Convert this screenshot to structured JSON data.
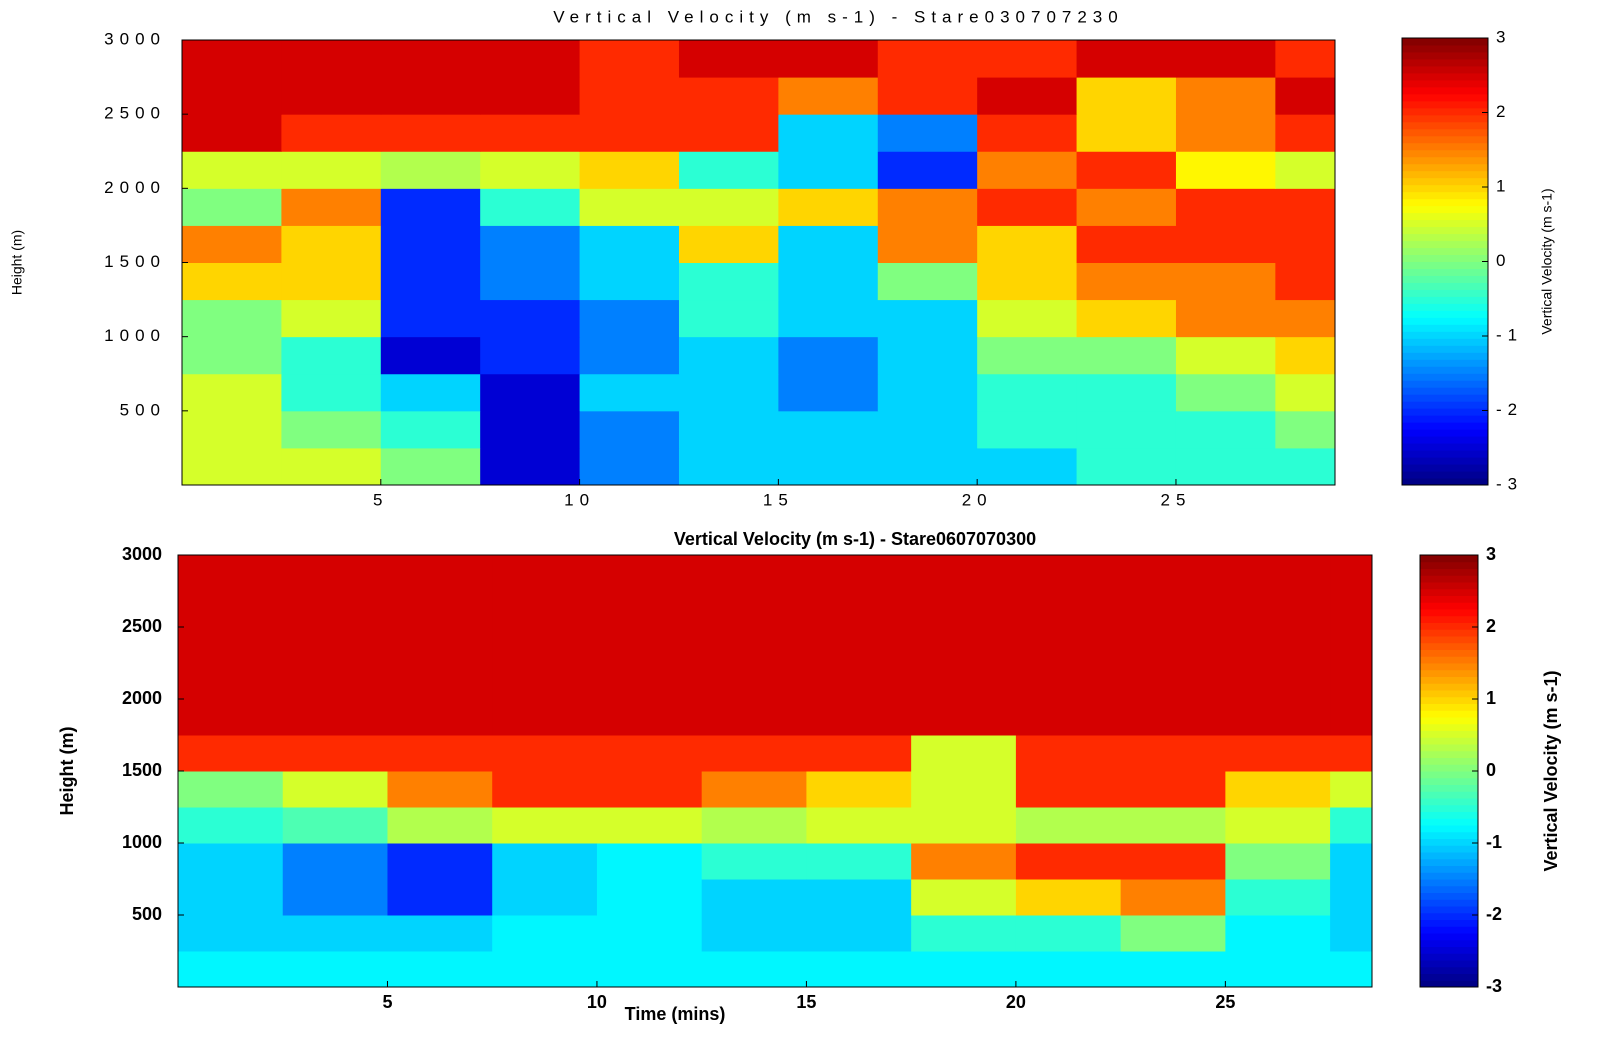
{
  "chart_data": [
    {
      "type": "heatmap",
      "title": "Vertical Velocity (m s-1) - Stare030707230",
      "ylabel": "Height (m)",
      "colorbar_label": "Vertical Velocity (m s-1)",
      "xlim": [
        0,
        29
      ],
      "xticks": [
        5,
        10,
        15,
        20,
        25
      ],
      "ylim": [
        0,
        3000
      ],
      "yticks": [
        500,
        1000,
        1500,
        2000,
        2500,
        3000
      ],
      "clim": [
        -3,
        3
      ],
      "cticks": [
        -3,
        -2,
        -1,
        0,
        1,
        2,
        3
      ],
      "colormap": "jet",
      "x": [
        1.25,
        3.75,
        6.25,
        8.75,
        11.25,
        13.75,
        16.25,
        18.75,
        21.25,
        23.75,
        26.25,
        28.75
      ],
      "y": [
        125,
        375,
        625,
        875,
        1125,
        1375,
        1625,
        1875,
        2125,
        2375,
        2625,
        2875
      ],
      "z": [
        [
          0.5,
          0.5,
          0,
          -2.5,
          -1.5,
          -1,
          -1,
          -1,
          -1,
          -0.5,
          -0.5,
          -0.5
        ],
        [
          0.5,
          0,
          -0.5,
          -2.5,
          -1.5,
          -1,
          -1,
          -1,
          -0.5,
          -0.5,
          -0.5,
          0
        ],
        [
          0.5,
          -0.5,
          -1,
          -2.5,
          -1,
          -1,
          -1.5,
          -1,
          -0.5,
          -0.5,
          0,
          0.5
        ],
        [
          0,
          -0.5,
          -2.5,
          -2,
          -1.5,
          -1,
          -1.5,
          -1,
          0,
          0,
          0.5,
          1
        ],
        [
          0,
          0.5,
          -2,
          -2,
          -1.5,
          -0.5,
          -1,
          -1,
          0.5,
          1,
          1.5,
          1.5
        ],
        [
          1,
          1,
          -2,
          -1.5,
          -1,
          -0.5,
          -1,
          0,
          1,
          1.5,
          1.5,
          2
        ],
        [
          1.5,
          1,
          -2,
          -1.5,
          -1,
          1,
          -1,
          1.5,
          1,
          2,
          2,
          2
        ],
        [
          0,
          1.5,
          -2,
          -0.5,
          0.5,
          0.5,
          1,
          1.5,
          2,
          1.5,
          2,
          2
        ],
        [
          0.5,
          0.5,
          0.3,
          0.5,
          1,
          -0.5,
          -1,
          -2,
          1.5,
          2,
          0.8,
          0.5
        ],
        [
          2.5,
          2,
          2,
          2,
          2,
          2,
          -1,
          -1.5,
          2,
          1,
          1.5,
          2
        ],
        [
          2.5,
          2.5,
          2.5,
          2.5,
          2,
          2,
          1.5,
          2,
          2.5,
          1,
          1.5,
          2.5
        ],
        [
          2.5,
          2.5,
          2.5,
          2.5,
          2,
          2.5,
          2.5,
          2,
          2,
          2.5,
          2.5,
          2
        ]
      ]
    },
    {
      "type": "heatmap",
      "title": "Vertical Velocity (m s-1) - Stare0607070300",
      "xlabel": "Time (mins)",
      "ylabel": "Height (m)",
      "colorbar_label": "Vertical Velocity (m s-1)",
      "xlim": [
        0,
        28.5
      ],
      "xticks": [
        5,
        10,
        15,
        20,
        25
      ],
      "ylim": [
        0,
        3000
      ],
      "yticks": [
        500,
        1000,
        1500,
        2000,
        2500,
        3000
      ],
      "clim": [
        -3,
        3
      ],
      "cticks": [
        -3,
        -2,
        -1,
        0,
        1,
        2,
        3
      ],
      "colormap": "jet",
      "x": [
        1.25,
        3.75,
        6.25,
        8.75,
        11.25,
        13.75,
        16.25,
        18.75,
        21.25,
        23.75,
        26.25,
        28.75
      ],
      "y": [
        125,
        375,
        625,
        875,
        1125,
        1375,
        1625,
        1875,
        2125,
        2375,
        2625,
        2875
      ],
      "z": [
        [
          -0.8,
          -0.8,
          -0.8,
          -0.8,
          -0.8,
          -0.8,
          -0.8,
          -0.8,
          -0.8,
          -0.8,
          -0.8,
          -0.8
        ],
        [
          -1,
          -1,
          -1,
          -0.8,
          -0.8,
          -1,
          -1,
          -0.5,
          -0.5,
          0,
          -0.8,
          -1
        ],
        [
          -1,
          -1.5,
          -2,
          -1,
          -0.8,
          -1,
          -1,
          0.5,
          1,
          1.5,
          -0.5,
          -1
        ],
        [
          -1,
          -1.5,
          -2,
          -1,
          -0.8,
          -0.5,
          -0.5,
          1.5,
          2,
          2,
          0,
          -1
        ],
        [
          -0.5,
          -0.3,
          0.3,
          0.5,
          0.5,
          0.3,
          0.5,
          0.5,
          0.3,
          0.3,
          0.5,
          -0.5
        ],
        [
          0,
          0.5,
          1.5,
          2,
          2,
          1.5,
          1,
          0.5,
          2,
          2,
          1,
          0.5
        ],
        [
          2,
          2,
          2,
          2,
          2,
          2,
          2,
          0.5,
          2,
          2,
          2,
          2
        ],
        [
          2.5,
          2.5,
          2.5,
          2.5,
          2.5,
          2.5,
          2.5,
          2.5,
          2.5,
          2.5,
          2.5,
          2.5
        ],
        [
          2.5,
          2.5,
          2.5,
          2.5,
          2.5,
          2.5,
          2.5,
          2.5,
          2.5,
          2.5,
          2.5,
          2.5
        ],
        [
          2.5,
          2.5,
          2.5,
          2.5,
          2.5,
          2.5,
          2.5,
          2.5,
          2.5,
          2.5,
          2.5,
          2.5
        ],
        [
          2.5,
          2.5,
          2.5,
          2.5,
          2.5,
          2.5,
          2.5,
          2.5,
          2.5,
          2.5,
          2.5,
          2.5
        ],
        [
          2.5,
          2.5,
          2.5,
          2.5,
          2.5,
          2.5,
          2.5,
          2.5,
          2.5,
          2.5,
          2.5,
          2.5
        ]
      ]
    }
  ]
}
